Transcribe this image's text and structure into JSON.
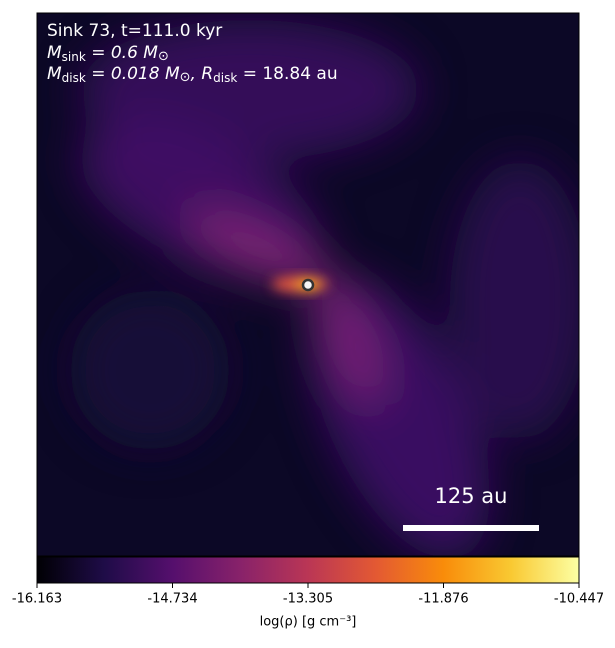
{
  "chart_data": {
    "type": "image",
    "title": "Sink 73, t=111.0 kyr",
    "annotations": [
      [
        "M",
        "sink",
        " = 0.6 M",
        "⊙"
      ],
      [
        "M",
        "disk",
        " = 0.018 M",
        "⊙",
        ", R",
        "disk",
        " = 18.84 au"
      ]
    ],
    "scale_bar_label": "125 au",
    "colorbar": {
      "label": "log(ρ) [g cm⁻³]",
      "colormap": "inferno",
      "xlim": [
        -16.163,
        -10.447
      ],
      "xticks": [
        -16.163,
        -14.734,
        -13.305,
        -11.876,
        -10.447
      ]
    }
  }
}
